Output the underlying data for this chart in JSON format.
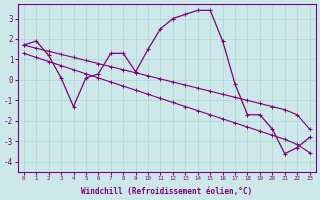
{
  "x_values": [
    0,
    1,
    2,
    3,
    4,
    5,
    6,
    7,
    8,
    9,
    10,
    11,
    12,
    13,
    14,
    15,
    16,
    17,
    18,
    19,
    20,
    21,
    22,
    23
  ],
  "y_main": [
    1.7,
    1.9,
    1.2,
    0.1,
    -1.3,
    0.1,
    0.3,
    1.3,
    1.3,
    0.4,
    1.5,
    2.5,
    3.0,
    3.2,
    3.4,
    3.4,
    1.9,
    -0.2,
    -1.7,
    -1.7,
    -2.4,
    -3.6,
    -3.3,
    -2.8
  ],
  "y_upper": [
    1.7,
    1.55,
    1.4,
    1.25,
    1.1,
    0.95,
    0.8,
    0.65,
    0.5,
    0.35,
    0.2,
    0.05,
    -0.1,
    -0.25,
    -0.4,
    -0.55,
    -0.7,
    -0.85,
    -1.0,
    -1.15,
    -1.3,
    -1.45,
    -1.7,
    -2.4
  ],
  "y_lower": [
    1.3,
    1.1,
    0.9,
    0.7,
    0.5,
    0.3,
    0.1,
    -0.1,
    -0.3,
    -0.5,
    -0.7,
    -0.9,
    -1.1,
    -1.3,
    -1.5,
    -1.7,
    -1.9,
    -2.1,
    -2.3,
    -2.5,
    -2.7,
    -2.9,
    -3.15,
    -3.55
  ],
  "line_color": "#800080",
  "bg_color": "#cce8e8",
  "grid_color": "#aad4d4",
  "xlabel": "Windchill (Refroidissement éolien,°C)",
  "ylim": [
    -4.5,
    3.7
  ],
  "xlim": [
    -0.5,
    23.5
  ],
  "yticks": [
    -4,
    -3,
    -2,
    -1,
    0,
    1,
    2,
    3
  ],
  "xticks": [
    0,
    1,
    2,
    3,
    4,
    5,
    6,
    7,
    8,
    9,
    10,
    11,
    12,
    13,
    14,
    15,
    16,
    17,
    18,
    19,
    20,
    21,
    22,
    23
  ],
  "figsize": [
    3.2,
    2.0
  ],
  "dpi": 100
}
